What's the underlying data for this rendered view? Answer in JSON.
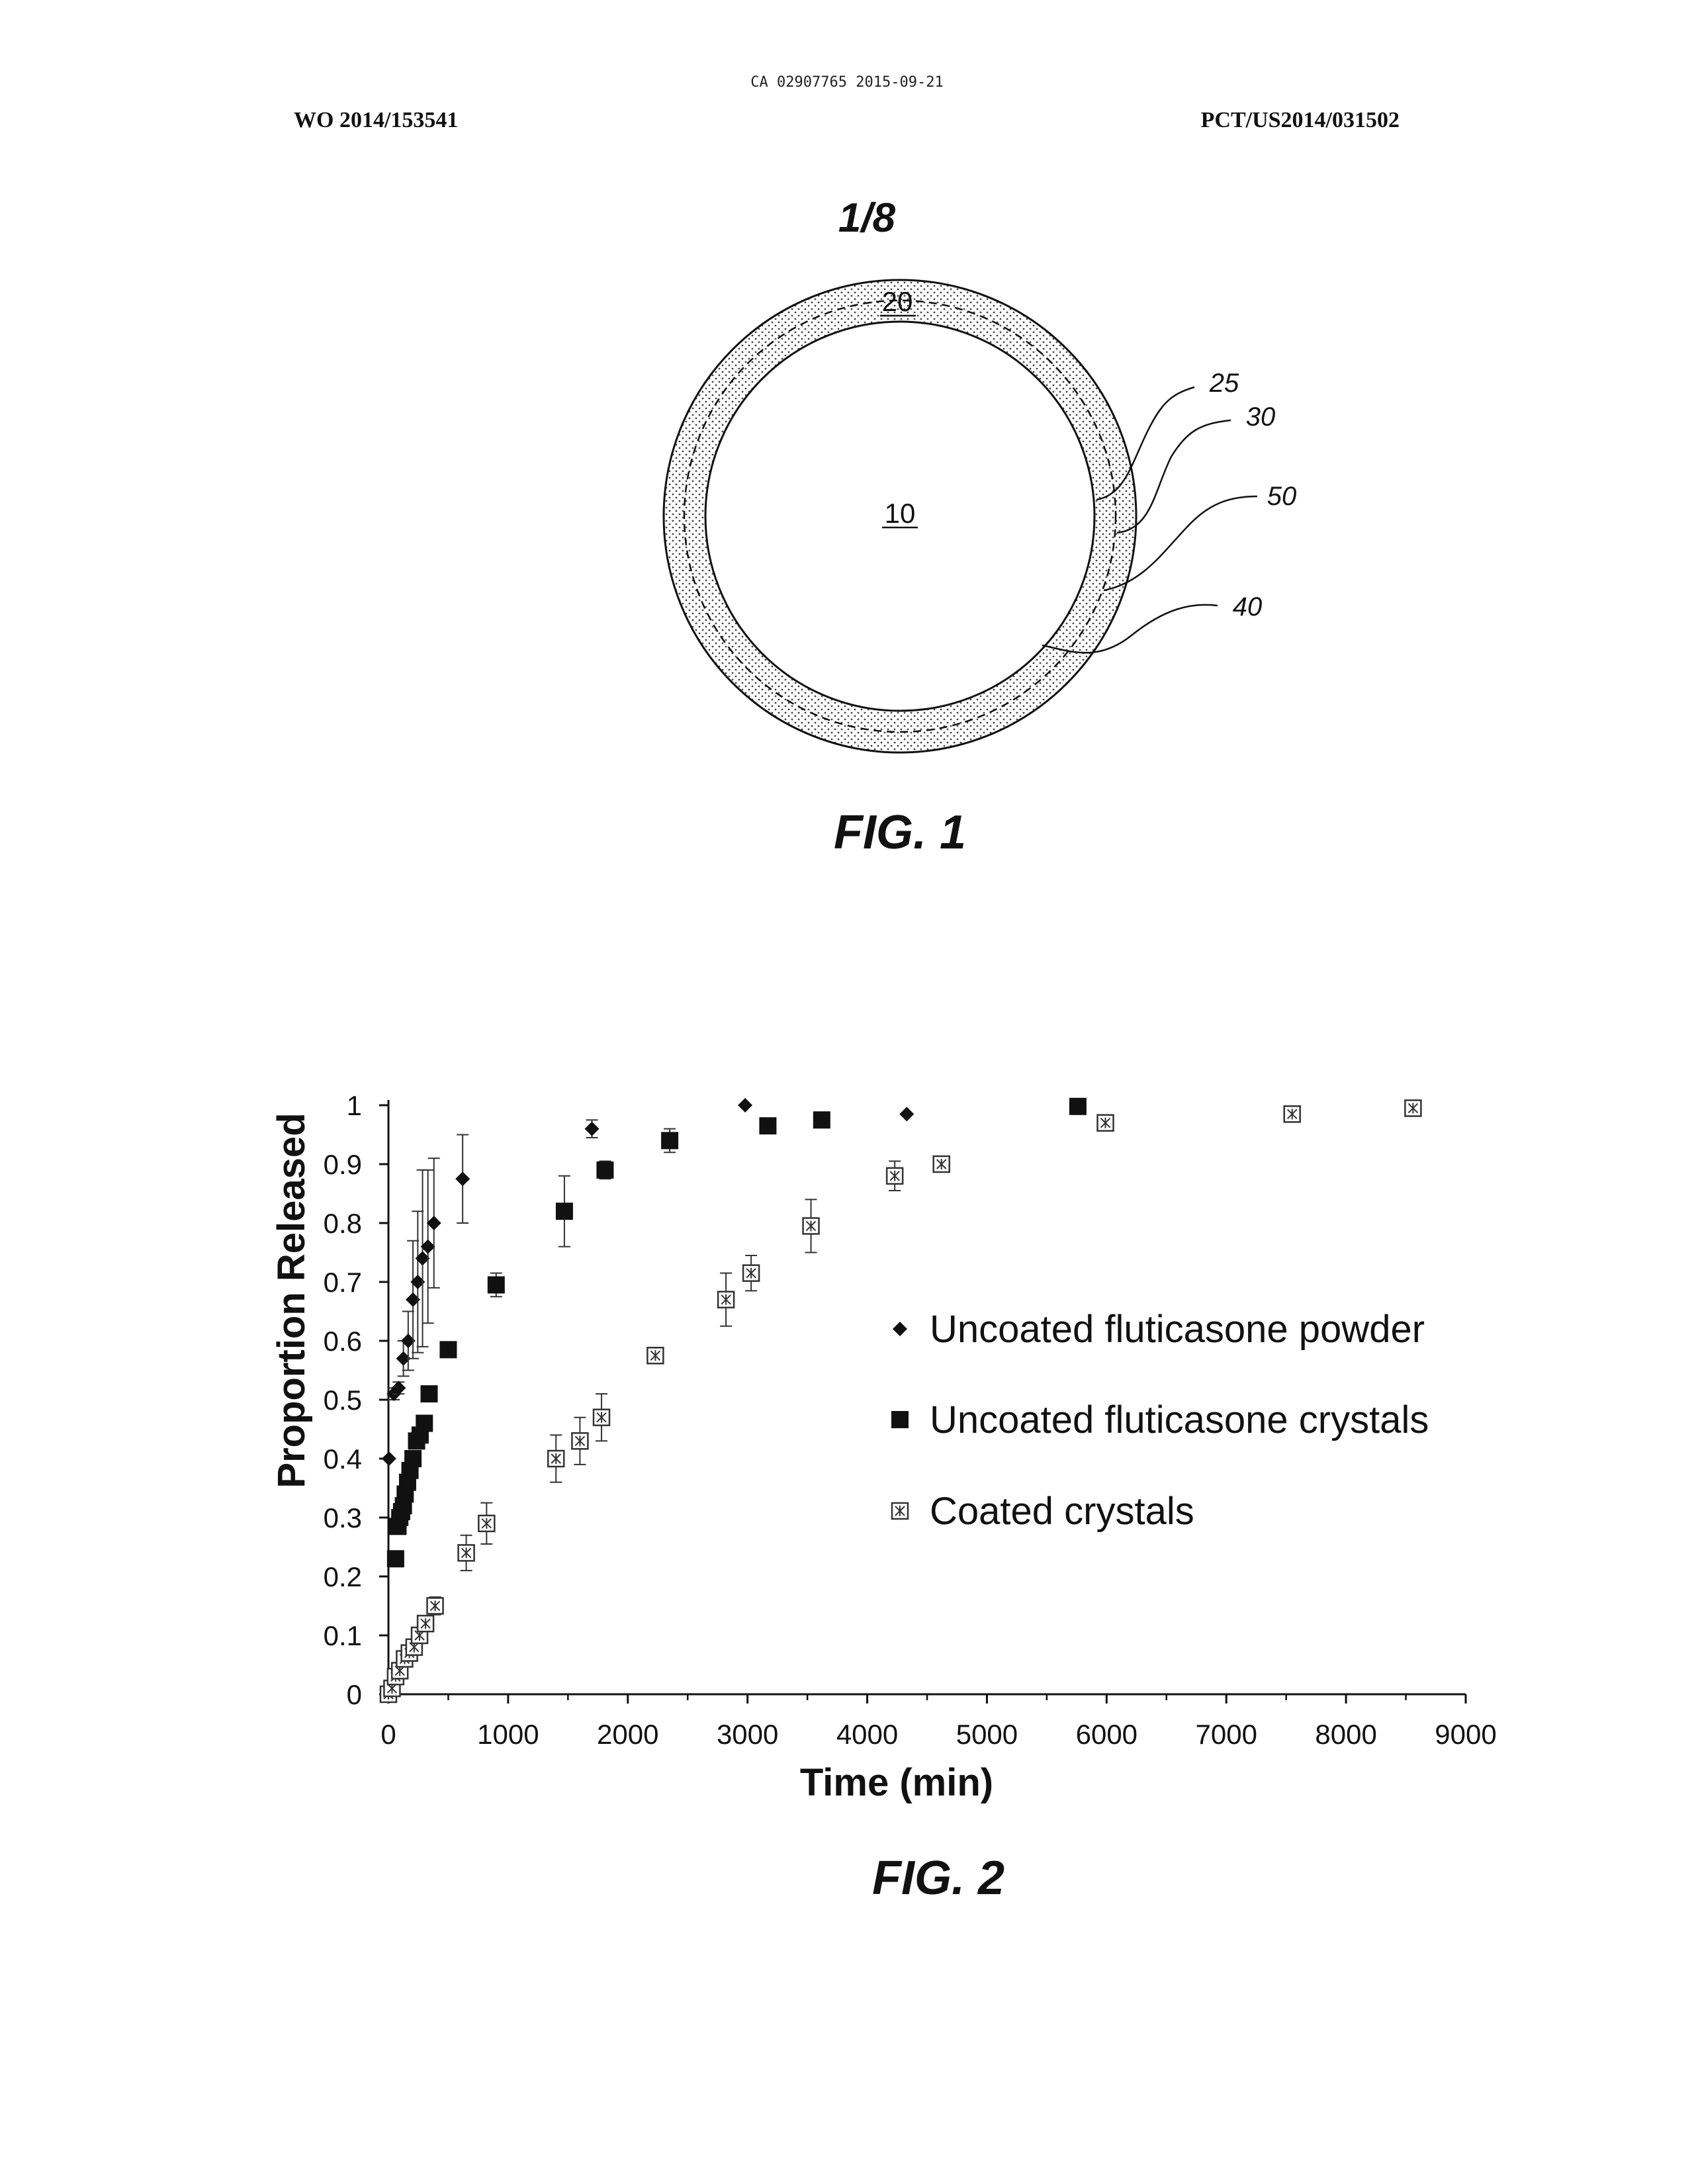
{
  "header": {
    "top_stamp": "CA 02907765 2015-09-21",
    "left_id": "WO 2014/153541",
    "right_id": "PCT/US2014/031502",
    "sheet": "1/8"
  },
  "fig1": {
    "caption": "FIG. 1",
    "labels": {
      "center": "10",
      "ring": "20",
      "l25": "25",
      "l30": "30",
      "l50": "50",
      "l40": "40"
    }
  },
  "fig2": {
    "caption": "FIG. 2"
  },
  "chart_data": {
    "type": "scatter",
    "title": "",
    "xlabel": "Time (min)",
    "ylabel": "Proportion Released",
    "xlim": [
      0,
      9000
    ],
    "ylim": [
      0,
      1
    ],
    "x_ticks": [
      0,
      1000,
      2000,
      3000,
      4000,
      5000,
      6000,
      7000,
      8000,
      9000
    ],
    "y_ticks": [
      0,
      0.1,
      0.2,
      0.3,
      0.4,
      0.5,
      0.6,
      0.7,
      0.8,
      0.9,
      1
    ],
    "y_tick_labels": [
      "0",
      "0.1",
      "0.2",
      "0.3",
      "0.4",
      "0.5",
      "0.6",
      "0.7",
      "0.8",
      "0.9",
      "1"
    ],
    "legend_position": "right",
    "series": [
      {
        "name": "Uncoated fluticasone powder",
        "marker": "diamond-filled",
        "color": "#111111",
        "x": [
          5,
          45,
          85,
          125,
          165,
          205,
          245,
          285,
          330,
          380,
          620,
          1700,
          2980,
          4330
        ],
        "y": [
          0.4,
          0.51,
          0.52,
          0.57,
          0.6,
          0.67,
          0.7,
          0.74,
          0.76,
          0.8,
          0.875,
          0.96,
          1.0,
          0.985
        ],
        "err": [
          0,
          0.01,
          0.01,
          0.03,
          0.05,
          0.1,
          0.12,
          0.15,
          0.13,
          0.11,
          0.075,
          0.015,
          0,
          0
        ]
      },
      {
        "name": "Uncoated fluticasone crystals",
        "marker": "square-filled",
        "color": "#111111",
        "x": [
          60,
          80,
          95,
          110,
          125,
          140,
          160,
          180,
          205,
          235,
          265,
          300,
          340,
          500,
          900,
          1470,
          1810,
          2350,
          3170,
          3620,
          5760
        ],
        "y": [
          0.23,
          0.285,
          0.3,
          0.31,
          0.32,
          0.34,
          0.36,
          0.38,
          0.4,
          0.43,
          0.44,
          0.46,
          0.51,
          0.585,
          0.695,
          0.82,
          0.89,
          0.94,
          0.965,
          0.975,
          0.998
        ],
        "err": [
          0,
          0,
          0,
          0,
          0,
          0,
          0,
          0,
          0,
          0.01,
          0.01,
          0.01,
          0.01,
          0.01,
          0.02,
          0.06,
          0.015,
          0.02,
          0,
          0,
          0
        ]
      },
      {
        "name": "Coated crystals",
        "marker": "square-open-star",
        "color": "#111111",
        "x": [
          0,
          30,
          60,
          95,
          135,
          175,
          215,
          260,
          310,
          390,
          650,
          820,
          1400,
          1600,
          1780,
          2230,
          2820,
          3030,
          3530,
          4230,
          4620,
          5990,
          7550,
          8560
        ],
        "y": [
          0,
          0.01,
          0.03,
          0.04,
          0.06,
          0.07,
          0.08,
          0.1,
          0.12,
          0.15,
          0.24,
          0.29,
          0.4,
          0.43,
          0.47,
          0.575,
          0.67,
          0.715,
          0.795,
          0.88,
          0.9,
          0.97,
          0.985,
          0.995
        ],
        "err": [
          0,
          0,
          0,
          0,
          0,
          0,
          0,
          0,
          0.01,
          0.015,
          0.03,
          0.035,
          0.04,
          0.04,
          0.04,
          0.01,
          0.045,
          0.03,
          0.045,
          0.025,
          0.01,
          0.01,
          0.01,
          0.01
        ]
      }
    ]
  }
}
